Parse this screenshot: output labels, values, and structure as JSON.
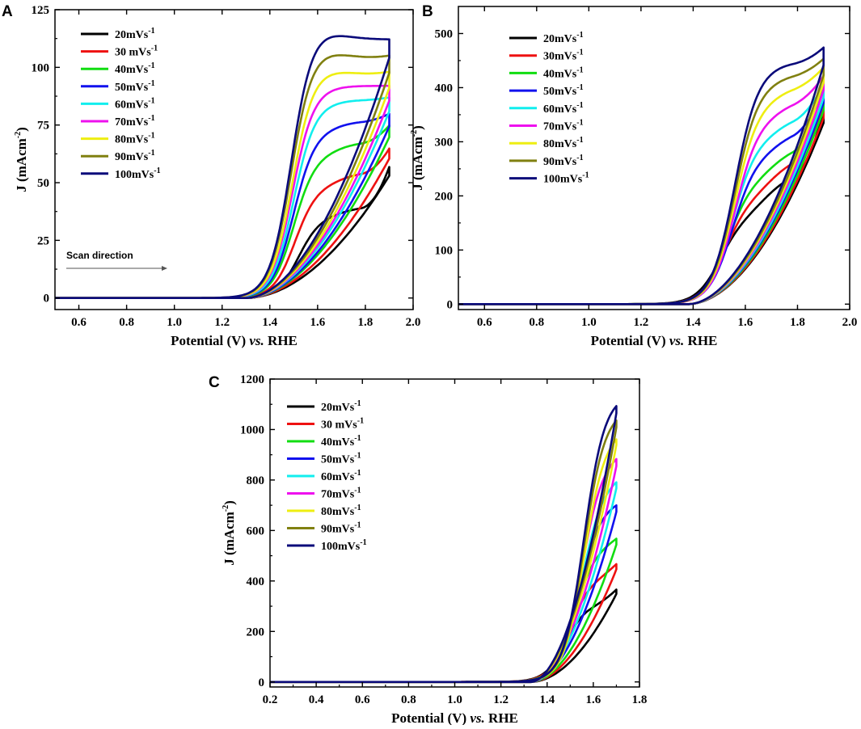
{
  "colors": {
    "20": "#000000",
    "30": "#ee1111",
    "40": "#11dd11",
    "50": "#1111ee",
    "60": "#11eeee",
    "70": "#ee11ee",
    "80": "#eeee11",
    "90": "#808010",
    "100": "#0a0a7a"
  },
  "chart_data": [
    {
      "panel": "A",
      "type": "line",
      "title": "",
      "xlabel": "Potential (V) vs. RHE",
      "xlabel_main": "Potential (V) ",
      "xlabel_italic": "vs.",
      "xlabel_tail": " RHE",
      "ylabel": "J (mAcm-2)",
      "ylabel_main": "J (mAcm",
      "ylabel_sup": "-2",
      "ylabel_tail": ")",
      "xlim": [
        0.5,
        2.0
      ],
      "ylim": [
        -5,
        125
      ],
      "xticks": [
        "0.6",
        "0.8",
        "1.0",
        "1.2",
        "1.4",
        "1.6",
        "1.8",
        "2.0"
      ],
      "yticks": [
        "0",
        "25",
        "50",
        "75",
        "100",
        "125"
      ],
      "annotation": "Scan direction",
      "curve_params": {
        "onset": 1.22,
        "vmax": 1.9,
        "cathodic_onset": 1.3
      },
      "series": [
        {
          "name": "20mVs-1",
          "label": "20mVs",
          "sup": "-1",
          "color_key": "20",
          "plateau": 35,
          "plateau_end": 40,
          "vhalf": 1.52,
          "end": 57
        },
        {
          "name": "30 mVs-1",
          "label": "30 mVs",
          "sup": "-1",
          "color_key": "30",
          "plateau": 48,
          "plateau_end": 55,
          "vhalf": 1.505,
          "end": 65
        },
        {
          "name": "40mVs-1",
          "label": "40mVs",
          "sup": "-1",
          "color_key": "40",
          "plateau": 62,
          "plateau_end": 68,
          "vhalf": 1.5,
          "end": 75
        },
        {
          "name": "50mVs-1",
          "label": "50mVs",
          "sup": "-1",
          "color_key": "50",
          "plateau": 73,
          "plateau_end": 77,
          "vhalf": 1.5,
          "end": 80
        },
        {
          "name": "60mVs-1",
          "label": "60mVs",
          "sup": "-1",
          "color_key": "60",
          "plateau": 85,
          "plateau_end": 86,
          "vhalf": 1.5,
          "end": 87
        },
        {
          "name": "70mVs-1",
          "label": "70mVs",
          "sup": "-1",
          "color_key": "70",
          "plateau": 92,
          "plateau_end": 92,
          "vhalf": 1.495,
          "end": 92
        },
        {
          "name": "80mVs-1",
          "label": "80mVs",
          "sup": "-1",
          "color_key": "80",
          "plateau": 101,
          "plateau_end": 97,
          "vhalf": 1.495,
          "end": 98
        },
        {
          "name": "90mVs-1",
          "label": "90mVs",
          "sup": "-1",
          "color_key": "90",
          "plateau": 110,
          "plateau_end": 104,
          "vhalf": 1.49,
          "end": 105
        },
        {
          "name": "100mVs-1",
          "label": "100mVs",
          "sup": "-1",
          "color_key": "100",
          "plateau": 119,
          "plateau_end": 112,
          "vhalf": 1.49,
          "end": 112
        }
      ]
    },
    {
      "panel": "B",
      "type": "line",
      "title": "",
      "xlabel": "Potential (V) vs. RHE",
      "xlabel_main": "Potential (V) ",
      "xlabel_italic": "vs.",
      "xlabel_tail": " RHE",
      "ylabel": "J (mAcm-2)",
      "ylabel_main": "J (mAcm",
      "ylabel_sup": "-2",
      "ylabel_tail": ")",
      "xlim": [
        0.5,
        2.0
      ],
      "ylim": [
        -10,
        550
      ],
      "xticks": [
        "0.6",
        "0.8",
        "1.0",
        "1.2",
        "1.4",
        "1.6",
        "1.8",
        "2.0"
      ],
      "yticks": [
        "0",
        "100",
        "200",
        "300",
        "400",
        "500"
      ],
      "curve_params": {
        "onset": 1.25,
        "vmax": 1.9,
        "cathodic_onset": 1.38
      },
      "series": [
        {
          "name": "20mVs-1",
          "label": "20mVs",
          "sup": "-1",
          "color_key": "20",
          "plateau": 150,
          "plateau_end": 250,
          "vhalf": 1.5,
          "end": 360
        },
        {
          "name": "30mVs-1",
          "label": "30mVs",
          "sup": "-1",
          "color_key": "30",
          "plateau": 185,
          "plateau_end": 280,
          "vhalf": 1.52,
          "end": 370
        },
        {
          "name": "40mVs-1",
          "label": "40mVs",
          "sup": "-1",
          "color_key": "40",
          "plateau": 220,
          "plateau_end": 300,
          "vhalf": 1.53,
          "end": 385
        },
        {
          "name": "50mVs-1",
          "label": "50mVs",
          "sup": "-1",
          "color_key": "50",
          "plateau": 270,
          "plateau_end": 330,
          "vhalf": 1.55,
          "end": 400
        },
        {
          "name": "60mVs-1",
          "label": "60mVs",
          "sup": "-1",
          "color_key": "60",
          "plateau": 300,
          "plateau_end": 355,
          "vhalf": 1.55,
          "end": 410
        },
        {
          "name": "70mVs-1",
          "label": "70mVs",
          "sup": "-1",
          "color_key": "70",
          "plateau": 340,
          "plateau_end": 385,
          "vhalf": 1.56,
          "end": 425
        },
        {
          "name": "80mVs-1",
          "label": "80mVs",
          "sup": "-1",
          "color_key": "80",
          "plateau": 375,
          "plateau_end": 410,
          "vhalf": 1.56,
          "end": 440
        },
        {
          "name": "90mVs-1",
          "label": "90mVs",
          "sup": "-1",
          "color_key": "90",
          "plateau": 410,
          "plateau_end": 430,
          "vhalf": 1.56,
          "end": 455
        },
        {
          "name": "100mVs-1",
          "label": "100mVs",
          "sup": "-1",
          "color_key": "100",
          "plateau": 440,
          "plateau_end": 450,
          "vhalf": 1.56,
          "end": 475
        }
      ]
    },
    {
      "panel": "C",
      "type": "line",
      "title": "",
      "xlabel": "Potential (V) vs. RHE",
      "xlabel_main": "Potential (V) ",
      "xlabel_italic": "vs.",
      "xlabel_tail": " RHE",
      "ylabel": "J (mAcm-2)",
      "ylabel_main": "J (mAcm",
      "ylabel_sup": "-2",
      "ylabel_tail": ")",
      "xlim": [
        0.2,
        1.8
      ],
      "ylim": [
        -20,
        1200
      ],
      "xticks": [
        "0.2",
        "0.4",
        "0.6",
        "0.8",
        "1.0",
        "1.2",
        "1.4",
        "1.6",
        "1.8"
      ],
      "yticks": [
        "0",
        "200",
        "400",
        "600",
        "800",
        "1000",
        "1200"
      ],
      "curve_params": {
        "onset": 1.22,
        "vmax": 1.7,
        "cathodic_onset": 1.33
      },
      "series": [
        {
          "name": "20mVs-1",
          "label": "20mVs",
          "sup": "-1",
          "color_key": "20",
          "plateau": 310,
          "plateau_end": 330,
          "vhalf": 1.48,
          "end": 375
        },
        {
          "name": "30 mVs-1",
          "label": "30 mVs",
          "sup": "-1",
          "color_key": "30",
          "plateau": 420,
          "plateau_end": 440,
          "vhalf": 1.5,
          "end": 480
        },
        {
          "name": "40mVs-1",
          "label": "40mVs",
          "sup": "-1",
          "color_key": "40",
          "plateau": 545,
          "plateau_end": 560,
          "vhalf": 1.52,
          "end": 585
        },
        {
          "name": "50mVs-1",
          "label": "50mVs",
          "sup": "-1",
          "color_key": "50",
          "plateau": 705,
          "plateau_end": 715,
          "vhalf": 1.54,
          "end": 725
        },
        {
          "name": "60mVs-1",
          "label": "60mVs",
          "sup": "-1",
          "color_key": "60",
          "plateau": 800,
          "plateau_end": 810,
          "vhalf": 1.55,
          "end": 825
        },
        {
          "name": "70mVs-1",
          "label": "70mVs",
          "sup": "-1",
          "color_key": "70",
          "plateau": 895,
          "plateau_end": 905,
          "vhalf": 1.55,
          "end": 920
        },
        {
          "name": "80mVs-1",
          "label": "80mVs",
          "sup": "-1",
          "color_key": "80",
          "plateau": 990,
          "plateau_end": 1000,
          "vhalf": 1.56,
          "end": 1010
        },
        {
          "name": "90mVs-1",
          "label": "90mVs",
          "sup": "-1",
          "color_key": "90",
          "plateau": 1075,
          "plateau_end": 1080,
          "vhalf": 1.56,
          "end": 1085
        },
        {
          "name": "100mVs-1",
          "label": "100mVs",
          "sup": "-1",
          "color_key": "100",
          "plateau": 1140,
          "plateau_end": 1145,
          "vhalf": 1.56,
          "end": 1145
        }
      ]
    }
  ]
}
